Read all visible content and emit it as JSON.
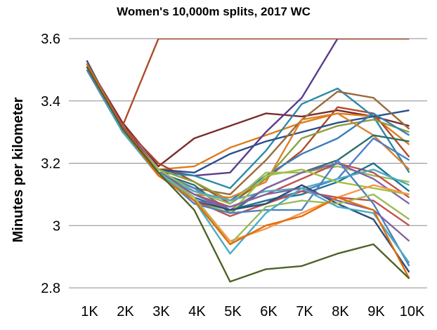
{
  "chart_data": {
    "type": "line",
    "title": "Women's 10,000m splits, 2017 WC",
    "xlabel": "",
    "ylabel": "Minutes per kilometer",
    "categories": [
      "1K",
      "2K",
      "3K",
      "4K",
      "5K",
      "6K",
      "7K",
      "8K",
      "9K",
      "10K"
    ],
    "y_tick_labels": [
      "2.8",
      "3",
      "3.2",
      "3.4",
      "3.6"
    ],
    "ylim": [
      2.8,
      3.6
    ],
    "grid": "horizontal",
    "legend": "none",
    "series": [
      {
        "color": "#7b2c2c",
        "values": [
          3.52,
          3.33,
          3.19,
          3.28,
          3.32,
          3.36,
          3.35,
          3.37,
          3.35,
          3.32
        ]
      },
      {
        "color": "#e07b1a",
        "values": [
          3.52,
          3.31,
          3.18,
          3.19,
          3.25,
          3.29,
          3.33,
          3.36,
          3.35,
          3.26
        ]
      },
      {
        "color": "#5b3c8c",
        "values": [
          3.52,
          3.32,
          3.18,
          3.16,
          3.17,
          3.3,
          3.41,
          3.6,
          3.6,
          3.6
        ]
      },
      {
        "color": "#b04a2a",
        "values": [
          3.52,
          3.32,
          3.6,
          3.6,
          3.6,
          3.6,
          3.6,
          3.6,
          3.6,
          3.6
        ]
      },
      {
        "color": "#b04a2a",
        "values": [
          3.52,
          3.32,
          3.2,
          3.14,
          3.07,
          3.15,
          3.24,
          3.38,
          3.36,
          3.22
        ]
      },
      {
        "color": "#2a8aa8",
        "values": [
          3.51,
          3.31,
          3.17,
          3.16,
          3.12,
          3.24,
          3.39,
          3.44,
          3.35,
          3.17
        ]
      },
      {
        "color": "#2b4f8c",
        "values": [
          3.53,
          3.31,
          3.18,
          3.17,
          3.23,
          3.27,
          3.3,
          3.33,
          3.35,
          3.37
        ]
      },
      {
        "color": "#9c6a3a",
        "values": [
          3.51,
          3.32,
          3.17,
          3.12,
          3.1,
          3.21,
          3.34,
          3.43,
          3.41,
          3.31
        ]
      },
      {
        "color": "#8aa040",
        "values": [
          3.52,
          3.31,
          3.18,
          3.14,
          3.08,
          3.15,
          3.28,
          3.32,
          3.34,
          3.3
        ]
      },
      {
        "color": "#3a7db8",
        "values": [
          3.51,
          3.3,
          3.17,
          3.11,
          3.08,
          3.16,
          3.23,
          3.28,
          3.36,
          3.29
        ]
      },
      {
        "color": "#d9822b",
        "values": [
          3.52,
          3.32,
          3.16,
          3.1,
          3.09,
          3.14,
          3.34,
          3.36,
          3.29,
          3.18
        ]
      },
      {
        "color": "#2f6f6a",
        "values": [
          3.52,
          3.32,
          3.17,
          3.13,
          3.04,
          3.12,
          3.17,
          3.21,
          3.29,
          3.27
        ]
      },
      {
        "color": "#4f7ec4",
        "values": [
          3.5,
          3.3,
          3.17,
          3.12,
          3.05,
          3.08,
          3.11,
          3.15,
          3.28,
          3.21
        ]
      },
      {
        "color": "#9bbb59",
        "values": [
          3.51,
          3.31,
          3.18,
          3.11,
          3.07,
          3.17,
          3.17,
          3.19,
          3.16,
          3.14
        ]
      },
      {
        "color": "#c0504d",
        "values": [
          3.52,
          3.31,
          3.17,
          3.1,
          3.06,
          3.1,
          3.15,
          3.2,
          3.17,
          3.09
        ]
      },
      {
        "color": "#1f7391",
        "values": [
          3.51,
          3.31,
          3.17,
          3.09,
          3.05,
          3.08,
          3.1,
          3.14,
          3.2,
          3.11
        ]
      },
      {
        "color": "#4bacc6",
        "values": [
          3.51,
          3.3,
          3.16,
          3.11,
          3.08,
          3.11,
          3.12,
          3.15,
          3.18,
          3.13
        ]
      },
      {
        "color": "#8064a2",
        "values": [
          3.52,
          3.31,
          3.17,
          3.1,
          3.05,
          3.12,
          3.17,
          3.2,
          3.15,
          3.07
        ]
      },
      {
        "color": "#a0c040",
        "values": [
          3.51,
          3.31,
          3.17,
          3.08,
          3.04,
          3.16,
          3.18,
          3.14,
          3.12,
          3.1
        ]
      },
      {
        "color": "#f79646",
        "values": [
          3.52,
          3.31,
          3.16,
          3.09,
          2.95,
          2.99,
          3.04,
          3.09,
          3.13,
          3.1
        ]
      },
      {
        "color": "#c0504d",
        "values": [
          3.52,
          3.32,
          3.17,
          3.08,
          3.03,
          3.07,
          3.11,
          3.09,
          3.08,
          3.0
        ]
      },
      {
        "color": "#4f81bd",
        "values": [
          3.51,
          3.31,
          3.17,
          3.07,
          3.04,
          3.05,
          3.05,
          3.21,
          3.07,
          2.87
        ]
      },
      {
        "color": "#2c4d75",
        "values": [
          3.51,
          3.31,
          3.17,
          3.08,
          3.05,
          3.07,
          3.13,
          3.07,
          3.02,
          2.85
        ]
      },
      {
        "color": "#8064a2",
        "values": [
          3.52,
          3.31,
          3.17,
          3.08,
          3.06,
          3.1,
          3.12,
          3.08,
          3.05,
          2.95
        ]
      },
      {
        "color": "#9bbb59",
        "values": [
          3.51,
          3.31,
          3.17,
          3.09,
          2.94,
          3.06,
          3.08,
          3.07,
          3.1,
          3.02
        ]
      },
      {
        "color": "#4bacc6",
        "values": [
          3.52,
          3.3,
          3.17,
          3.08,
          2.91,
          3.04,
          3.12,
          3.06,
          3.04,
          2.88
        ]
      },
      {
        "color": "#e36c09",
        "values": [
          3.52,
          3.31,
          3.16,
          3.08,
          2.94,
          3.0,
          3.03,
          3.09,
          3.05,
          2.83
        ]
      },
      {
        "color": "#4f6228",
        "values": [
          3.51,
          3.31,
          3.17,
          3.05,
          2.82,
          2.86,
          2.87,
          2.91,
          2.94,
          2.83
        ]
      }
    ]
  }
}
